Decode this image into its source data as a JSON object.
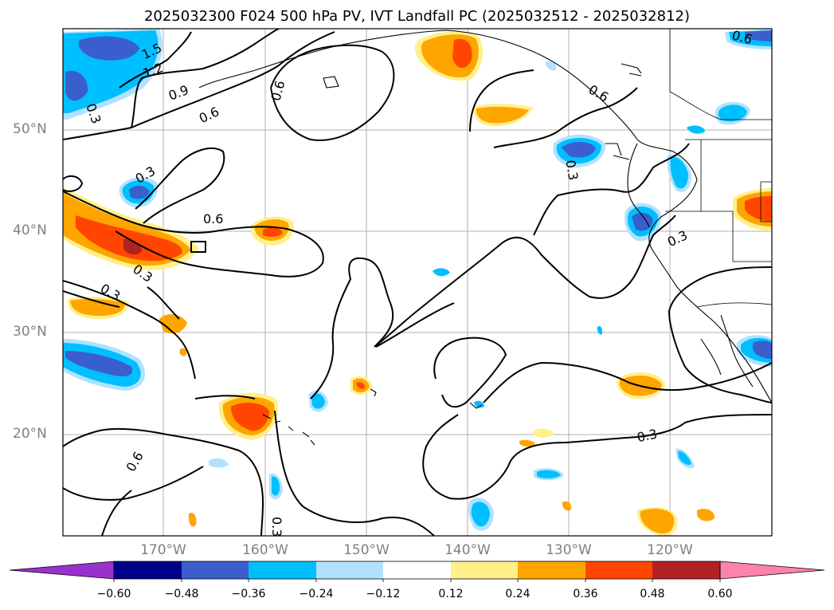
{
  "title": "2025032300 F024 500 hPa PV, IVT Landfall PC (2025032512 - 2025032812)",
  "lat_labels": [
    "50°N",
    "40°N",
    "30°N",
    "20°N"
  ],
  "lon_labels": [
    "170°W",
    "160°W",
    "150°W",
    "140°W",
    "130°W",
    "120°W"
  ],
  "colorbar": {
    "ticks": [
      "−0.60",
      "−0.48",
      "−0.36",
      "−0.24",
      "−0.12",
      "0.12",
      "0.24",
      "0.36",
      "0.48",
      "0.60"
    ],
    "colors": [
      "#9932cc",
      "#00008b",
      "#3a5fcd",
      "#00bfff",
      "#b0e2ff",
      "#ffffff",
      "#fff08a",
      "#ffa500",
      "#ff4500",
      "#b22222",
      "#ff82ab"
    ]
  },
  "contour_labels": {
    "l_1_5": "1.5",
    "l_1_2": "1.2",
    "l_0_9": "0.9",
    "l_0_6a": "0.6",
    "l_0_6b": "0.6",
    "l_0_6c": "0.6",
    "l_0_6d": "0.6",
    "l_0_6e": "0.6",
    "l_0_6f": "0.6",
    "l_0_3a": "0.3",
    "l_0_3b": "0.3",
    "l_0_3c": "0.3",
    "l_0_3d": "0.3",
    "l_0_3e": "0.3",
    "l_0_3f": "0.3",
    "l_0_3g": "0.3",
    "l_0_3h": "0.3"
  }
}
